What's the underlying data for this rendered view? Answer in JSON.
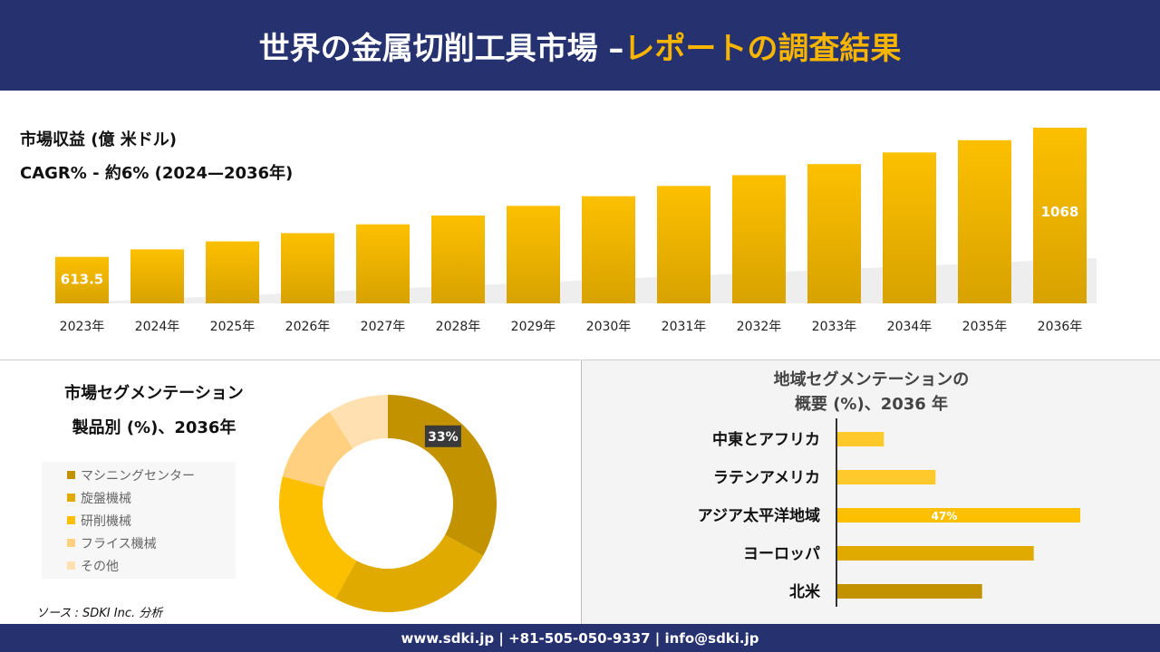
{
  "header": {
    "title_main": "世界の金属切削工具市場 –",
    "title_accent": "レポートの調査結果"
  },
  "revenue": {
    "label": "市場収益 (億 米ドル)",
    "cagr": "CAGR% - 約6% (2024—2036年)"
  },
  "chart_data": [
    {
      "type": "bar",
      "title": "市場収益 (億 米ドル)",
      "categories": [
        "2023年",
        "2024年",
        "2025年",
        "2026年",
        "2027年",
        "2028年",
        "2029年",
        "2030年",
        "2031年",
        "2032年",
        "2033年",
        "2034年",
        "2035年",
        "2036年"
      ],
      "values": [
        613.5,
        640,
        668,
        697,
        728,
        759,
        793,
        827,
        863,
        901,
        940,
        981,
        1024,
        1068
      ],
      "data_labels": {
        "0": "613.5",
        "13": "1068"
      },
      "ylim": [
        450,
        1068
      ],
      "grid": false
    },
    {
      "type": "pie",
      "title": "市場セグメンテーション 製品別 (%)、2036年",
      "categories": [
        "マシニングセンター",
        "旋盤機械",
        "研削機械",
        "フライス機械",
        "その他"
      ],
      "values": [
        33,
        25,
        21,
        12,
        9
      ],
      "colors": [
        "#c39200",
        "#e0aa00",
        "#fcc000",
        "#ffd080",
        "#ffe0b0"
      ],
      "data_labels": {
        "0": "33%"
      },
      "legend": "left"
    },
    {
      "type": "bar",
      "orientation": "horizontal",
      "title": "地域セグメンテーションの 概要 (%)、2036 年",
      "categories": [
        "中東とアフリカ",
        "ラテンアメリカ",
        "アジア太平洋地域",
        "ヨーロッパ",
        "北米"
      ],
      "values": [
        9,
        19,
        47,
        38,
        28
      ],
      "colors": [
        "#ffc92b",
        "#ffc92b",
        "#fcc000",
        "#e0aa00",
        "#c39200"
      ],
      "data_labels": {
        "2": "47%"
      }
    }
  ],
  "source": "ソース : SDKI Inc. 分析",
  "footer": "www.sdki.jp | +81-505-050-9337 | info@sdki.jp"
}
